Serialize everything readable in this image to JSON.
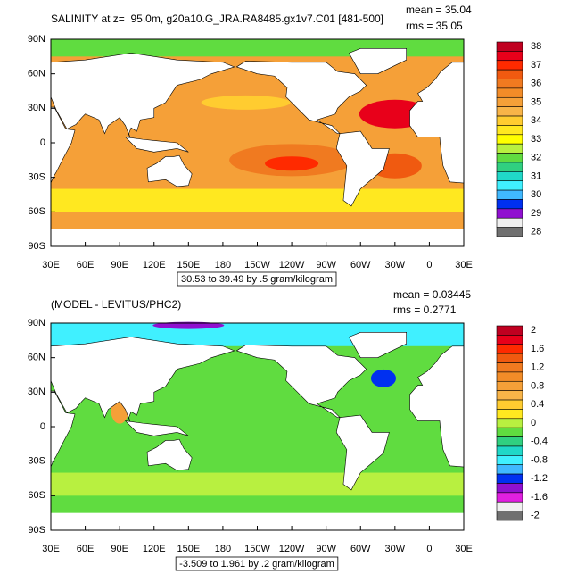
{
  "lat_labels": [
    "90N",
    "60N",
    "30N",
    "0",
    "30S",
    "60S",
    "90S"
  ],
  "lon_labels": [
    "30E",
    "60E",
    "90E",
    "120E",
    "150E",
    "180",
    "150W",
    "120W",
    "90W",
    "60W",
    "30W",
    "0",
    "30E"
  ],
  "panels": [
    {
      "title": "SALINITY at z=  95.0m, g20a10.G_JRA.RA8485.gx1v7.C01 [481-500]",
      "mean": "mean = 35.04",
      "rms": "rms = 35.05",
      "info": "30.53 to 39.49 by .5 gram/kilogram",
      "colorbar": {
        "labels": [
          "38",
          "37",
          "36",
          "35",
          "34",
          "33",
          "32",
          "31",
          "30",
          "29",
          "28"
        ],
        "colors": [
          "#c00020",
          "#e8001a",
          "#ff2a00",
          "#f05a10",
          "#f07a20",
          "#f28c28",
          "#f5a038",
          "#f8b448",
          "#ffcc30",
          "#ffe820",
          "#ffff00",
          "#b8f040",
          "#60dc40",
          "#30d080",
          "#20d8c8",
          "#40f0ff",
          "#40b8ff",
          "#0030f0",
          "#9010d0",
          "#f0f0f0",
          "#707070"
        ]
      }
    },
    {
      "title": "(MODEL - LEVITUS/PHC2)",
      "mean": "mean = 0.03445",
      "rms": "rms = 0.2771",
      "info": "-3.509 to 1.961 by .2 gram/kilogram",
      "colorbar": {
        "labels": [
          "2",
          "1.6",
          "1.2",
          "0.8",
          "0.4",
          "0",
          "-0.4",
          "-0.8",
          "-1.2",
          "-1.6",
          "-2"
        ],
        "colors": [
          "#c00020",
          "#e8001a",
          "#ff2a00",
          "#f05a10",
          "#f07a20",
          "#f28c28",
          "#f5a038",
          "#f8b448",
          "#ffcc30",
          "#ffe820",
          "#b8f040",
          "#60dc40",
          "#30d080",
          "#20d8c8",
          "#40f0ff",
          "#40b8ff",
          "#0030f0",
          "#9010d0",
          "#e020e0",
          "#f0f0f0",
          "#707070"
        ]
      }
    }
  ]
}
